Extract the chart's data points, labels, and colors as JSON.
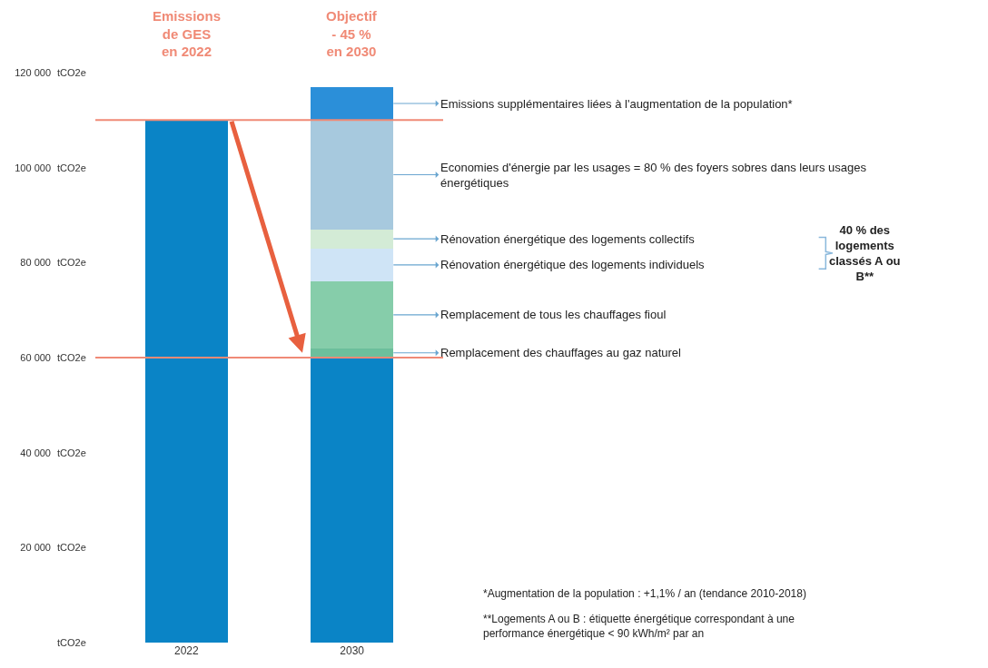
{
  "chart_data": {
    "type": "bar",
    "stacked": true,
    "categories": [
      "2022",
      "2030"
    ],
    "series": [
      {
        "color": "#0a84c6",
        "values": [
          110000,
          60000
        ]
      },
      {
        "name": "Remplacement des chauffages au gaz naturel",
        "color": "#6cbf9c",
        "values": [
          null,
          2000
        ]
      },
      {
        "name": "Remplacement de tous les chauffages fioul",
        "color": "#86cdaa",
        "values": [
          null,
          14000
        ]
      },
      {
        "name": "Rénovation énergétique des logements individuels",
        "color": "#cfe4f6",
        "values": [
          null,
          7000
        ]
      },
      {
        "name": "Rénovation énergétique des logements collectifs",
        "color": "#d3ebd6",
        "values": [
          null,
          4000
        ]
      },
      {
        "name": "Economies d'énergie par les usages = 80 % des foyers sobres dans leurs usages énergétiques",
        "color": "#a7c9de",
        "values": [
          null,
          23000
        ]
      },
      {
        "name": "Emissions supplémentaires liées à l'augmentation de la population*",
        "color": "#2b8fd9",
        "values": [
          null,
          7000
        ]
      }
    ],
    "ylim": [
      0,
      120000
    ],
    "yticks": [
      {
        "value": 20000,
        "label": "20 000"
      },
      {
        "value": 40000,
        "label": "40 000"
      },
      {
        "value": 60000,
        "label": "60 000"
      },
      {
        "value": 80000,
        "label": "80 000"
      },
      {
        "value": 100000,
        "label": "100 000"
      },
      {
        "value": 120000,
        "label": "120 000"
      }
    ],
    "ylabel": "tCO2e",
    "ref_lines": [
      {
        "axis": "y",
        "value": 110000,
        "color": "#f08a76"
      },
      {
        "axis": "y",
        "value": 60000,
        "color": "#f08a76"
      }
    ],
    "annotations": [
      "Emissions de GES en 2022",
      "Objectif - 45 % en 2030",
      "40 % des logements classés A ou B**",
      "*Augmentation de la population : +1,1% / an (tendance 2010-2018)",
      "**Logements A ou B : étiquette énergétique correspondant à une performance énergétique < 90 kWh/m² par an"
    ],
    "grid": false,
    "legend": false
  }
}
